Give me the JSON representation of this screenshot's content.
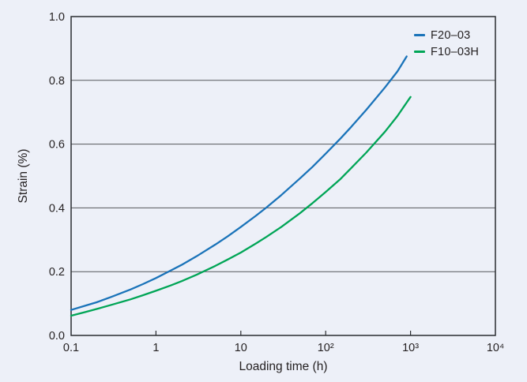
{
  "chart_data": {
    "type": "line",
    "title": "",
    "xlabel": "Loading time (h)",
    "ylabel": "Strain (%)",
    "x_scale": "log",
    "xlim": [
      0.1,
      10000
    ],
    "ylim": [
      0.0,
      1.0
    ],
    "grid": "horizontal",
    "y_gridlines": [
      0.2,
      0.4,
      0.6,
      0.8
    ],
    "legend_position": "top-right-inside",
    "x_ticks": [
      {
        "v": 0.1,
        "label": "0.1"
      },
      {
        "v": 1,
        "label": "1"
      },
      {
        "v": 10,
        "label": "10"
      },
      {
        "v": 100,
        "label": "10²"
      },
      {
        "v": 1000,
        "label": "10³"
      },
      {
        "v": 10000,
        "label": "10⁴"
      }
    ],
    "y_ticks": [
      {
        "v": 0.0,
        "label": "0.0"
      },
      {
        "v": 0.2,
        "label": "0.2"
      },
      {
        "v": 0.4,
        "label": "0.4"
      },
      {
        "v": 0.6,
        "label": "0.6"
      },
      {
        "v": 0.8,
        "label": "0.8"
      },
      {
        "v": 1.0,
        "label": "1.0"
      }
    ],
    "series": [
      {
        "name": "F20–03",
        "color": "#1a73b9",
        "points": [
          [
            0.1,
            0.08
          ],
          [
            0.15,
            0.094
          ],
          [
            0.2,
            0.104
          ],
          [
            0.3,
            0.121
          ],
          [
            0.5,
            0.144
          ],
          [
            0.7,
            0.161
          ],
          [
            1,
            0.18
          ],
          [
            1.5,
            0.204
          ],
          [
            2,
            0.221
          ],
          [
            3,
            0.248
          ],
          [
            5,
            0.285
          ],
          [
            7,
            0.311
          ],
          [
            10,
            0.34
          ],
          [
            15,
            0.375
          ],
          [
            20,
            0.401
          ],
          [
            30,
            0.44
          ],
          [
            50,
            0.493
          ],
          [
            70,
            0.529
          ],
          [
            100,
            0.57
          ],
          [
            150,
            0.618
          ],
          [
            200,
            0.654
          ],
          [
            300,
            0.707
          ],
          [
            500,
            0.778
          ],
          [
            700,
            0.828
          ],
          [
            900,
            0.875
          ]
        ]
      },
      {
        "name": "F10–03H",
        "color": "#00a556",
        "points": [
          [
            0.1,
            0.062
          ],
          [
            0.15,
            0.074
          ],
          [
            0.2,
            0.083
          ],
          [
            0.3,
            0.096
          ],
          [
            0.5,
            0.113
          ],
          [
            0.7,
            0.126
          ],
          [
            1,
            0.14
          ],
          [
            1.5,
            0.157
          ],
          [
            2,
            0.17
          ],
          [
            3,
            0.19
          ],
          [
            5,
            0.218
          ],
          [
            7,
            0.238
          ],
          [
            10,
            0.26
          ],
          [
            15,
            0.288
          ],
          [
            20,
            0.309
          ],
          [
            30,
            0.34
          ],
          [
            50,
            0.384
          ],
          [
            70,
            0.415
          ],
          [
            100,
            0.45
          ],
          [
            150,
            0.491
          ],
          [
            200,
            0.525
          ],
          [
            300,
            0.573
          ],
          [
            500,
            0.639
          ],
          [
            700,
            0.688
          ],
          [
            1000,
            0.748
          ]
        ]
      }
    ]
  },
  "colors": {
    "background": "#edf0f8",
    "frame": "#2a2c30",
    "gridline": "#54565a",
    "text": "#231f20"
  }
}
